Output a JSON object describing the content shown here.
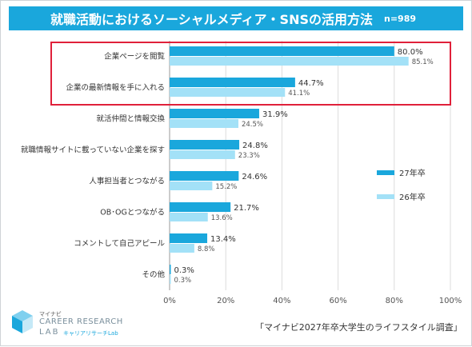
{
  "header": {
    "title": "就職活動におけるソーシャルメディア・SNSの活用方法",
    "sample": "n=989"
  },
  "chart_data": {
    "type": "bar",
    "orientation": "horizontal",
    "title": "就職活動におけるソーシャルメディア・SNSの活用方法",
    "categories": [
      "企業ページを閲覧",
      "企業の最新情報を手に入れる",
      "就活仲間と情報交換",
      "就職情報サイトに載っていない企業を探す",
      "人事担当者とつながる",
      "OB･OGとつながる",
      "コメントして自己アピール",
      "その他"
    ],
    "series": [
      {
        "name": "27年卒",
        "values": [
          80.0,
          44.7,
          31.9,
          24.8,
          24.6,
          21.7,
          13.4,
          0.3
        ],
        "labels": [
          "80.0%",
          "44.7%",
          "31.9%",
          "24.8%",
          "24.6%",
          "21.7%",
          "13.4%",
          "0.3%"
        ],
        "color": "#1aa7dc"
      },
      {
        "name": "26年卒",
        "values": [
          85.1,
          41.1,
          24.5,
          23.3,
          15.2,
          13.6,
          8.8,
          0.3
        ],
        "labels": [
          "85.1%",
          "41.1%",
          "24.5%",
          "23.3%",
          "15.2%",
          "13.6%",
          "8.8%",
          "0.3%"
        ],
        "color": "#a3e1f7"
      }
    ],
    "xlim": [
      0,
      100
    ],
    "xticks": [
      0,
      20,
      40,
      60,
      80,
      100
    ],
    "xtick_labels": [
      "0%",
      "20%",
      "40%",
      "60%",
      "80%",
      "100%"
    ],
    "grid": true,
    "legend": "right",
    "highlight_color": "#e0203a"
  },
  "logo": {
    "small": "マイナビ",
    "main": "CAREER RESEARCH",
    "lab": "LAB",
    "kana": "キャリアリサーチLab"
  },
  "source": "「マイナビ2027年卒大学生のライフスタイル調査」"
}
